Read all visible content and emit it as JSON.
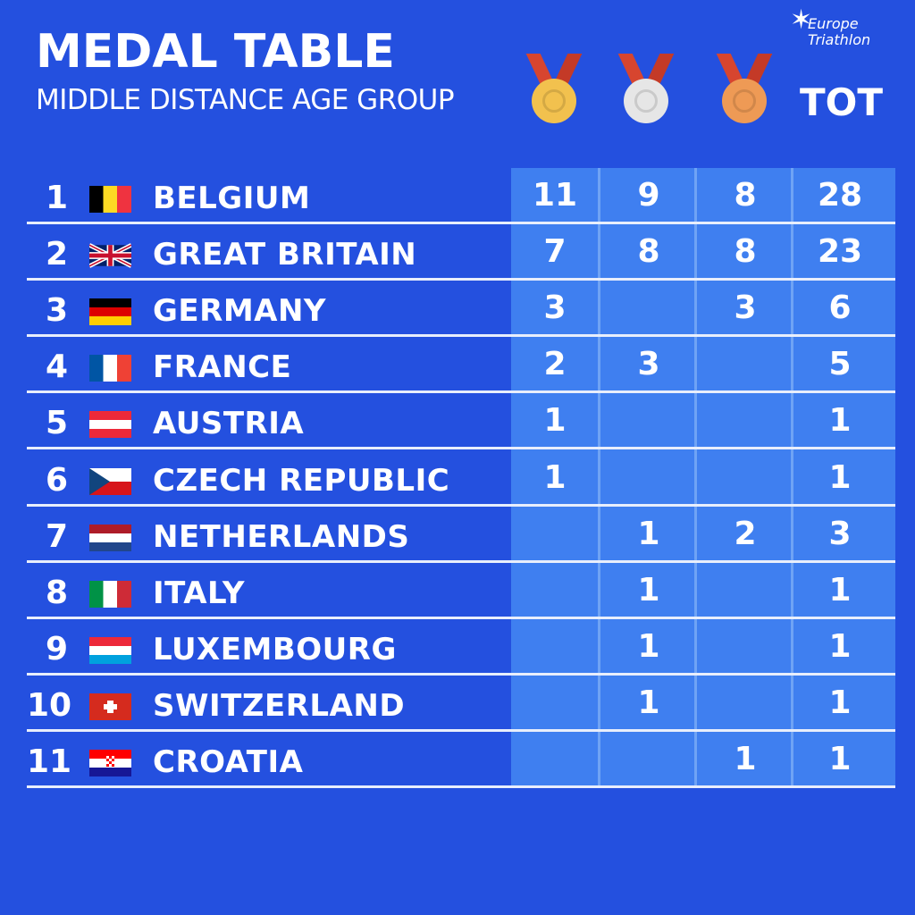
{
  "header": {
    "title": "MEDAL TABLE",
    "subtitle": "MIDDLE DISTANCE AGE GROUP",
    "logo_line1": "Europe",
    "logo_line2": "Triathlon",
    "total_label": "TOT"
  },
  "medals": [
    {
      "name": "gold",
      "color": "#f2c14e"
    },
    {
      "name": "silver",
      "color": "#e6e6e6"
    },
    {
      "name": "bronze",
      "color": "#ee9a55"
    }
  ],
  "rows": [
    {
      "rank": "1",
      "country": "BELGIUM",
      "flag": "belgium",
      "gold": "11",
      "silver": "9",
      "bronze": "8",
      "total": "28"
    },
    {
      "rank": "2",
      "country": "GREAT BRITAIN",
      "flag": "great-britain",
      "gold": "7",
      "silver": "8",
      "bronze": "8",
      "total": "23"
    },
    {
      "rank": "3",
      "country": "GERMANY",
      "flag": "germany",
      "gold": "3",
      "silver": "",
      "bronze": "3",
      "total": "6"
    },
    {
      "rank": "4",
      "country": "FRANCE",
      "flag": "france",
      "gold": "2",
      "silver": "3",
      "bronze": "",
      "total": "5"
    },
    {
      "rank": "5",
      "country": "AUSTRIA",
      "flag": "austria",
      "gold": "1",
      "silver": "",
      "bronze": "",
      "total": "1"
    },
    {
      "rank": "6",
      "country": "CZECH REPUBLIC",
      "flag": "czech-republic",
      "gold": "1",
      "silver": "",
      "bronze": "",
      "total": "1"
    },
    {
      "rank": "7",
      "country": "NETHERLANDS",
      "flag": "netherlands",
      "gold": "",
      "silver": "1",
      "bronze": "2",
      "total": "3"
    },
    {
      "rank": "8",
      "country": "ITALY",
      "flag": "italy",
      "gold": "",
      "silver": "1",
      "bronze": "",
      "total": "1"
    },
    {
      "rank": "9",
      "country": "LUXEMBOURG",
      "flag": "luxembourg",
      "gold": "",
      "silver": "1",
      "bronze": "",
      "total": "1"
    },
    {
      "rank": "10",
      "country": "SWITZERLAND",
      "flag": "switzerland",
      "gold": "",
      "silver": "1",
      "bronze": "",
      "total": "1"
    },
    {
      "rank": "11",
      "country": "CROATIA",
      "flag": "croatia",
      "gold": "",
      "silver": "",
      "bronze": "1",
      "total": "1"
    }
  ]
}
